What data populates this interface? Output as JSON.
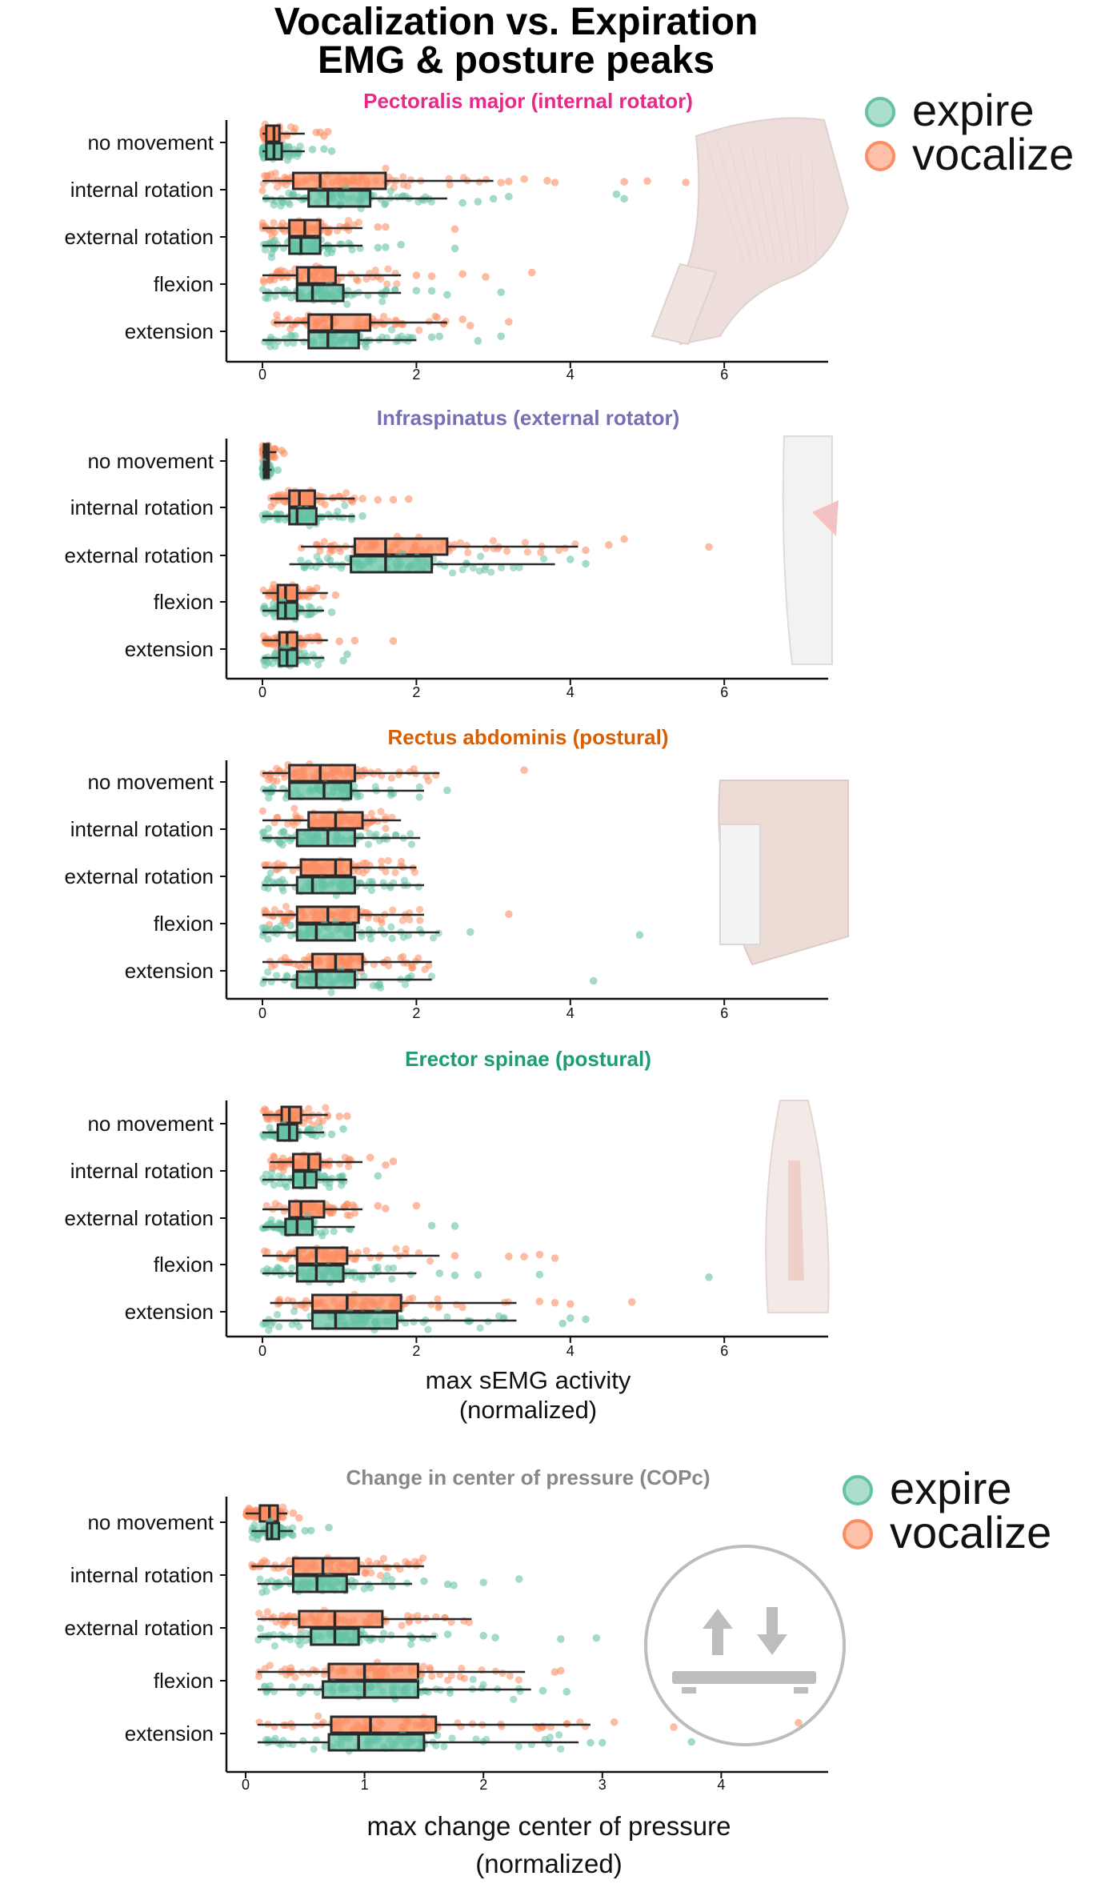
{
  "figure": {
    "title_line1": "Vocalization vs. Expiration",
    "title_line2": "EMG & posture peaks"
  },
  "colors": {
    "expire": "#66c2a5",
    "vocalize": "#fc8d62",
    "pectoralis": "#e7298a",
    "infraspinatus": "#7570b3",
    "rectus": "#d95f02",
    "erector": "#1b9e77",
    "copc": "#888888"
  },
  "legend": [
    {
      "label": "expire",
      "color": "#66c2a5"
    },
    {
      "label": "vocalize",
      "color": "#fc8d62"
    }
  ],
  "legend_bottom": [
    {
      "label": "expire",
      "color": "#66c2a5"
    },
    {
      "label": "vocalize",
      "color": "#fc8d62"
    }
  ],
  "emg_xlabel_line1": "max sEMG activity",
  "emg_xlabel_line2": "(normalized)",
  "cop_xlabel_line1": "max change center of pressure",
  "cop_xlabel_line2": "(normalized)",
  "chart_data": [
    {
      "type": "box",
      "title": "Pectoralis major (internal rotator)",
      "title_color": "#e7298a",
      "categories": [
        "no movement",
        "internal rotation",
        "external rotation",
        "flexion",
        "extension"
      ],
      "xlim": [
        -0.45,
        7.3
      ],
      "xticks": [
        "0",
        "2",
        "4",
        "6"
      ],
      "xtick_values": [
        0,
        2,
        4,
        6
      ],
      "series": [
        {
          "name": "vocalize",
          "box": [
            {
              "wlo": 0.0,
              "q1": 0.05,
              "med": 0.15,
              "q3": 0.22,
              "whi": 0.55,
              "out": [
                0.7,
                0.75,
                0.8,
                0.85
              ]
            },
            {
              "wlo": 0.0,
              "q1": 0.4,
              "med": 0.75,
              "q3": 1.6,
              "whi": 3.0,
              "out": [
                3.1,
                3.2,
                3.4,
                3.7,
                3.8,
                4.7,
                5.0,
                5.5
              ]
            },
            {
              "wlo": 0.0,
              "q1": 0.35,
              "med": 0.55,
              "q3": 0.75,
              "whi": 1.3,
              "out": [
                1.5,
                1.6,
                2.5
              ]
            },
            {
              "wlo": 0.0,
              "q1": 0.45,
              "med": 0.6,
              "q3": 0.95,
              "whi": 1.8,
              "out": [
                2.0,
                2.2,
                2.6,
                2.9,
                3.5
              ]
            },
            {
              "wlo": 0.15,
              "q1": 0.6,
              "med": 0.9,
              "q3": 1.4,
              "whi": 2.4,
              "out": [
                2.6,
                2.7,
                3.2
              ]
            }
          ]
        },
        {
          "name": "expire",
          "box": [
            {
              "wlo": 0.0,
              "q1": 0.05,
              "med": 0.15,
              "q3": 0.25,
              "whi": 0.55,
              "out": [
                0.65,
                0.8,
                0.9
              ]
            },
            {
              "wlo": 0.0,
              "q1": 0.6,
              "med": 0.85,
              "q3": 1.4,
              "whi": 2.4,
              "out": [
                2.6,
                2.8,
                3.0,
                3.2,
                4.6,
                4.7
              ]
            },
            {
              "wlo": 0.0,
              "q1": 0.35,
              "med": 0.5,
              "q3": 0.75,
              "whi": 1.3,
              "out": [
                1.5,
                1.6,
                1.8,
                2.5
              ]
            },
            {
              "wlo": 0.0,
              "q1": 0.45,
              "med": 0.65,
              "q3": 1.05,
              "whi": 1.8,
              "out": [
                2.0,
                2.2,
                2.4,
                3.1
              ]
            },
            {
              "wlo": 0.0,
              "q1": 0.6,
              "med": 0.85,
              "q3": 1.25,
              "whi": 2.0,
              "out": [
                2.2,
                2.3,
                2.8,
                3.1
              ]
            }
          ]
        }
      ]
    },
    {
      "type": "box",
      "title": "Infraspinatus (external rotator)",
      "title_color": "#7570b3",
      "categories": [
        "no movement",
        "internal rotation",
        "external rotation",
        "flexion",
        "extension"
      ],
      "xlim": [
        -0.45,
        7.3
      ],
      "xticks": [
        "0",
        "2",
        "4",
        "6"
      ],
      "xtick_values": [
        0,
        2,
        4,
        6
      ],
      "series": [
        {
          "name": "vocalize",
          "box": [
            {
              "wlo": 0.0,
              "q1": 0.02,
              "med": 0.05,
              "q3": 0.08,
              "whi": 0.18,
              "out": [
                0.25,
                0.28
              ]
            },
            {
              "wlo": 0.1,
              "q1": 0.35,
              "med": 0.48,
              "q3": 0.68,
              "whi": 1.2,
              "out": [
                1.3,
                1.5,
                1.7,
                1.9
              ]
            },
            {
              "wlo": 0.5,
              "q1": 1.2,
              "med": 1.6,
              "q3": 2.4,
              "whi": 4.1,
              "out": [
                4.2,
                4.5,
                4.7,
                5.8
              ]
            },
            {
              "wlo": 0.0,
              "q1": 0.2,
              "med": 0.3,
              "q3": 0.45,
              "whi": 0.85,
              "out": [
                0.95
              ]
            },
            {
              "wlo": 0.0,
              "q1": 0.22,
              "med": 0.32,
              "q3": 0.45,
              "whi": 0.85,
              "out": [
                1.0,
                1.2,
                1.7
              ]
            }
          ]
        },
        {
          "name": "expire",
          "box": [
            {
              "wlo": 0.0,
              "q1": 0.02,
              "med": 0.05,
              "q3": 0.08,
              "whi": 0.12,
              "out": [
                0.2
              ]
            },
            {
              "wlo": 0.0,
              "q1": 0.35,
              "med": 0.45,
              "q3": 0.7,
              "whi": 1.2,
              "out": [
                1.3
              ]
            },
            {
              "wlo": 0.35,
              "q1": 1.15,
              "med": 1.6,
              "q3": 2.2,
              "whi": 3.8,
              "out": [
                4.0,
                4.2
              ]
            },
            {
              "wlo": 0.0,
              "q1": 0.2,
              "med": 0.3,
              "q3": 0.45,
              "whi": 0.8,
              "out": [
                0.9
              ]
            },
            {
              "wlo": 0.0,
              "q1": 0.22,
              "med": 0.32,
              "q3": 0.45,
              "whi": 0.8,
              "out": [
                1.05,
                1.1
              ]
            }
          ]
        }
      ]
    },
    {
      "type": "box",
      "title": "Rectus abdominis (postural)",
      "title_color": "#d95f02",
      "categories": [
        "no movement",
        "internal rotation",
        "external rotation",
        "flexion",
        "extension"
      ],
      "xlim": [
        -0.45,
        7.3
      ],
      "xticks": [
        "0",
        "2",
        "4",
        "6"
      ],
      "xtick_values": [
        0,
        2,
        4,
        6
      ],
      "series": [
        {
          "name": "vocalize",
          "box": [
            {
              "wlo": 0.0,
              "q1": 0.35,
              "med": 0.75,
              "q3": 1.2,
              "whi": 2.3,
              "out": [
                3.4
              ]
            },
            {
              "wlo": 0.0,
              "q1": 0.6,
              "med": 0.95,
              "q3": 1.3,
              "whi": 1.8,
              "out": []
            },
            {
              "wlo": 0.0,
              "q1": 0.5,
              "med": 0.95,
              "q3": 1.15,
              "whi": 2.0,
              "out": []
            },
            {
              "wlo": 0.0,
              "q1": 0.45,
              "med": 0.85,
              "q3": 1.25,
              "whi": 2.1,
              "out": [
                3.2
              ]
            },
            {
              "wlo": 0.0,
              "q1": 0.65,
              "med": 0.95,
              "q3": 1.3,
              "whi": 2.2,
              "out": []
            }
          ]
        },
        {
          "name": "expire",
          "box": [
            {
              "wlo": 0.0,
              "q1": 0.35,
              "med": 0.8,
              "q3": 1.15,
              "whi": 2.1,
              "out": [
                2.4
              ]
            },
            {
              "wlo": 0.0,
              "q1": 0.45,
              "med": 0.85,
              "q3": 1.2,
              "whi": 2.05,
              "out": []
            },
            {
              "wlo": 0.0,
              "q1": 0.45,
              "med": 0.65,
              "q3": 1.2,
              "whi": 2.1,
              "out": []
            },
            {
              "wlo": 0.0,
              "q1": 0.45,
              "med": 0.7,
              "q3": 1.2,
              "whi": 2.3,
              "out": [
                2.7,
                4.9
              ]
            },
            {
              "wlo": 0.0,
              "q1": 0.45,
              "med": 0.7,
              "q3": 1.2,
              "whi": 2.2,
              "out": [
                4.3
              ]
            }
          ]
        }
      ]
    },
    {
      "type": "box",
      "title": "Erector spinae (postural)",
      "title_color": "#1b9e77",
      "categories": [
        "no movement",
        "internal rotation",
        "external rotation",
        "flexion",
        "extension"
      ],
      "xlim": [
        -0.45,
        7.3
      ],
      "xticks": [
        "0",
        "2",
        "4",
        "6"
      ],
      "xtick_values": [
        0,
        2,
        4,
        6
      ],
      "series": [
        {
          "name": "vocalize",
          "box": [
            {
              "wlo": 0.0,
              "q1": 0.25,
              "med": 0.35,
              "q3": 0.5,
              "whi": 0.85,
              "out": [
                1.0,
                1.1
              ]
            },
            {
              "wlo": 0.1,
              "q1": 0.4,
              "med": 0.6,
              "q3": 0.75,
              "whi": 1.3,
              "out": [
                1.4,
                1.6,
                1.7
              ]
            },
            {
              "wlo": 0.0,
              "q1": 0.35,
              "med": 0.5,
              "q3": 0.8,
              "whi": 1.3,
              "out": [
                1.5,
                1.6,
                2.0
              ]
            },
            {
              "wlo": 0.0,
              "q1": 0.45,
              "med": 0.7,
              "q3": 1.1,
              "whi": 2.3,
              "out": [
                2.5,
                3.2,
                3.4,
                3.6,
                3.8
              ]
            },
            {
              "wlo": 0.1,
              "q1": 0.65,
              "med": 1.1,
              "q3": 1.8,
              "whi": 3.3,
              "out": [
                3.6,
                3.8,
                4.0,
                4.8
              ]
            }
          ]
        },
        {
          "name": "expire",
          "box": [
            {
              "wlo": 0.0,
              "q1": 0.2,
              "med": 0.35,
              "q3": 0.45,
              "whi": 0.8,
              "out": [
                0.9,
                1.05
              ]
            },
            {
              "wlo": 0.0,
              "q1": 0.4,
              "med": 0.55,
              "q3": 0.7,
              "whi": 1.1,
              "out": [
                1.5
              ]
            },
            {
              "wlo": 0.0,
              "q1": 0.3,
              "med": 0.45,
              "q3": 0.65,
              "whi": 1.2,
              "out": [
                2.2,
                2.5
              ]
            },
            {
              "wlo": 0.0,
              "q1": 0.45,
              "med": 0.7,
              "q3": 1.05,
              "whi": 2.0,
              "out": [
                2.3,
                2.5,
                2.8,
                3.6,
                5.8
              ]
            },
            {
              "wlo": 0.0,
              "q1": 0.65,
              "med": 0.95,
              "q3": 1.75,
              "whi": 3.3,
              "out": [
                3.9,
                4.0,
                4.2
              ]
            }
          ]
        }
      ]
    },
    {
      "type": "box",
      "title": "Change in center of pressure (COPc)",
      "title_color": "#888888",
      "categories": [
        "no movement",
        "internal rotation",
        "external rotation",
        "flexion",
        "extension"
      ],
      "xlim": [
        -0.15,
        4.85
      ],
      "xticks": [
        "0",
        "1",
        "2",
        "3",
        "4"
      ],
      "xtick_values": [
        0,
        1,
        2,
        3,
        4
      ],
      "series": [
        {
          "name": "vocalize",
          "box": [
            {
              "wlo": 0.0,
              "q1": 0.12,
              "med": 0.2,
              "q3": 0.27,
              "whi": 0.35,
              "out": [
                0.4,
                0.45
              ]
            },
            {
              "wlo": 0.05,
              "q1": 0.4,
              "med": 0.65,
              "q3": 0.95,
              "whi": 1.5,
              "out": []
            },
            {
              "wlo": 0.1,
              "q1": 0.45,
              "med": 0.75,
              "q3": 1.15,
              "whi": 1.9,
              "out": []
            },
            {
              "wlo": 0.1,
              "q1": 0.7,
              "med": 1.0,
              "q3": 1.45,
              "whi": 2.35,
              "out": [
                2.6,
                2.65
              ]
            },
            {
              "wlo": 0.1,
              "q1": 0.72,
              "med": 1.05,
              "q3": 1.6,
              "whi": 2.9,
              "out": [
                3.1,
                3.6,
                4.65
              ]
            }
          ]
        },
        {
          "name": "expire",
          "box": [
            {
              "wlo": 0.05,
              "q1": 0.18,
              "med": 0.22,
              "q3": 0.28,
              "whi": 0.4,
              "out": [
                0.5,
                0.55,
                0.7
              ]
            },
            {
              "wlo": 0.1,
              "q1": 0.4,
              "med": 0.6,
              "q3": 0.85,
              "whi": 1.4,
              "out": [
                1.5,
                1.7,
                1.75,
                2.0,
                2.3
              ]
            },
            {
              "wlo": 0.1,
              "q1": 0.55,
              "med": 0.75,
              "q3": 0.95,
              "whi": 1.6,
              "out": [
                1.7,
                2.0,
                2.1,
                2.65,
                2.95
              ]
            },
            {
              "wlo": 0.1,
              "q1": 0.65,
              "med": 1.0,
              "q3": 1.45,
              "whi": 2.4,
              "out": [
                2.5,
                2.7
              ]
            },
            {
              "wlo": 0.1,
              "q1": 0.7,
              "med": 0.95,
              "q3": 1.5,
              "whi": 2.8,
              "out": [
                2.9,
                3.0,
                3.75
              ]
            }
          ]
        }
      ]
    }
  ]
}
